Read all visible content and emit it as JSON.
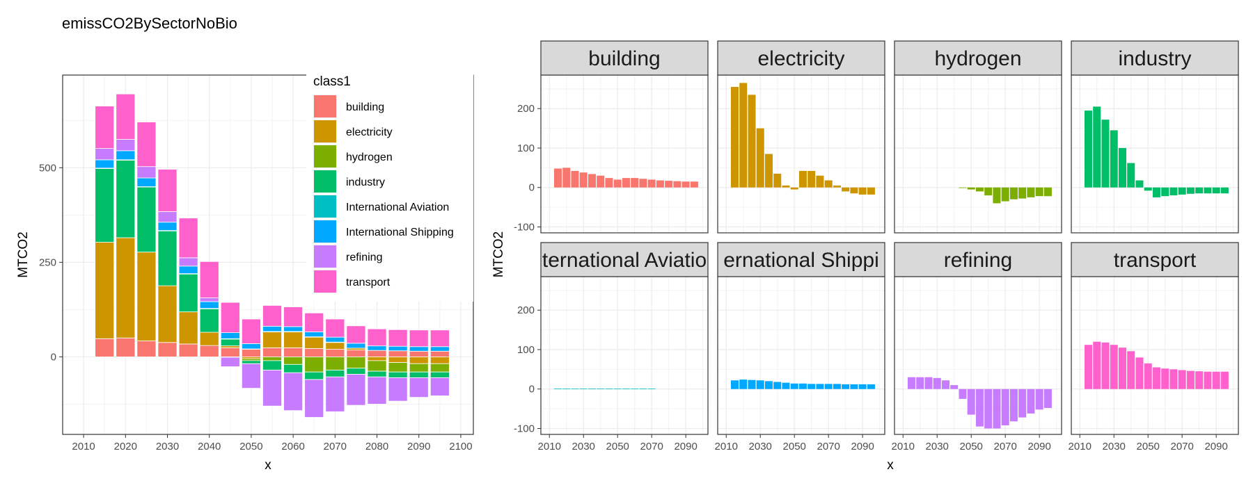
{
  "colors": {
    "building": "#F8766D",
    "electricity": "#CD9600",
    "hydrogen": "#7CAE00",
    "industry": "#00BE67",
    "International Aviation": "#00BFC4",
    "International Shipping": "#00A9FF",
    "refining": "#C77CFF",
    "transport": "#FF61CC"
  },
  "chart_data": [
    {
      "type": "bar",
      "stacked": true,
      "title": "emissCO2BySectorNoBio",
      "xlabel": "x",
      "ylabel": "MTCO2",
      "xlim": [
        2005,
        2103
      ],
      "ylim": [
        -205,
        745
      ],
      "xticks": [
        2010,
        2020,
        2030,
        2040,
        2050,
        2060,
        2070,
        2080,
        2090,
        2100
      ],
      "yticks": [
        0,
        250,
        500
      ],
      "grid": true,
      "legend": {
        "title": "class1",
        "position": "right-overlapping"
      },
      "categories": [
        2015,
        2020,
        2025,
        2030,
        2035,
        2040,
        2045,
        2050,
        2055,
        2060,
        2065,
        2070,
        2075,
        2080,
        2085,
        2090,
        2095
      ],
      "series": [
        {
          "name": "building",
          "values": [
            48,
            50,
            42,
            38,
            34,
            30,
            24,
            20,
            24,
            24,
            22,
            20,
            18,
            17,
            16,
            15,
            15
          ]
        },
        {
          "name": "electricity",
          "values": [
            255,
            265,
            235,
            150,
            85,
            35,
            5,
            -5,
            42,
            42,
            30,
            18,
            5,
            -10,
            -15,
            -18,
            -18
          ]
        },
        {
          "name": "hydrogen",
          "values": [
            0,
            0,
            0,
            0,
            0,
            0,
            -1,
            -5,
            -10,
            -20,
            -40,
            -35,
            -30,
            -28,
            -25,
            -22,
            -22
          ]
        },
        {
          "name": "industry",
          "values": [
            195,
            205,
            172,
            145,
            100,
            62,
            18,
            -8,
            -25,
            -22,
            -20,
            -18,
            -16,
            -15,
            -15,
            -15,
            -15
          ]
        },
        {
          "name": "International Aviation",
          "values": [
            1,
            1,
            1,
            1,
            1,
            1,
            1,
            1,
            1,
            1,
            1,
            1,
            0,
            0,
            0,
            0,
            0
          ]
        },
        {
          "name": "International Shipping",
          "values": [
            22,
            24,
            23,
            22,
            20,
            18,
            16,
            14,
            14,
            13,
            13,
            13,
            13,
            12,
            12,
            12,
            12
          ]
        },
        {
          "name": "refining",
          "values": [
            30,
            30,
            30,
            28,
            22,
            10,
            -25,
            -65,
            -95,
            -100,
            -100,
            -92,
            -82,
            -72,
            -62,
            -52,
            -48
          ]
        },
        {
          "name": "transport",
          "values": [
            112,
            120,
            118,
            112,
            105,
            96,
            80,
            65,
            55,
            52,
            50,
            48,
            46,
            45,
            44,
            44,
            44
          ]
        }
      ]
    },
    {
      "type": "bar",
      "faceted": true,
      "xlabel": "x",
      "ylabel": "MTCO2",
      "xlim": [
        2005,
        2103
      ],
      "ylim": [
        -115,
        285
      ],
      "xticks": [
        2010,
        2030,
        2050,
        2070,
        2090
      ],
      "yticks": [
        -100,
        0,
        100,
        200
      ],
      "grid": true,
      "facets": [
        "building",
        "electricity",
        "hydrogen",
        "industry",
        "International Aviation",
        "International Shipping",
        "refining",
        "transport"
      ],
      "facet_labels": [
        "building",
        "electricity",
        "hydrogen",
        "industry",
        "ternational Aviatio",
        "ernational Shippi",
        "refining",
        "transport"
      ]
    }
  ]
}
